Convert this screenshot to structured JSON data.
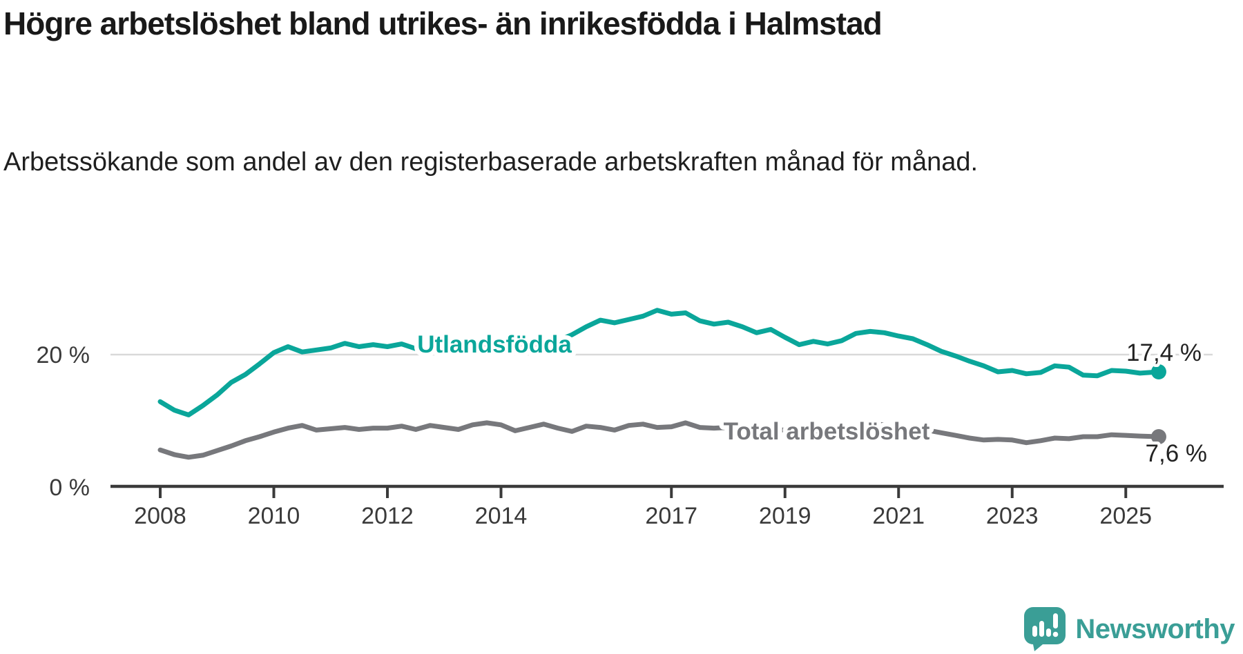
{
  "header": {
    "title": "Högre arbetslöshet bland utrikes- än inrikesfödda i Halmstad",
    "subtitle": "Arbetssökande som andel av den registerbaserade arbetskraften månad för månad."
  },
  "logo": {
    "text": "Newsworthy",
    "icon": "newsworthy-speech-bubble-chart-icon",
    "color": "#3a9e96"
  },
  "colors": {
    "accent_teal": "#0aa69a",
    "line_gray": "#77787c",
    "axis": "#3a3a3a",
    "gridline": "#d9d9d9",
    "value_label": "#222222",
    "title_text": "#191919"
  },
  "chart_data": {
    "type": "line",
    "title": "Högre arbetslöshet bland utrikes- än inrikesfödda i Halmstad",
    "subtitle": "Arbetssökande som andel av den registerbaserade arbetskraften månad för månad.",
    "unit": "%",
    "xlim": [
      2007.1,
      2026.7
    ],
    "ylim": [
      0,
      34
    ],
    "grid": "horizontal-only",
    "grid_values": [
      20
    ],
    "x_ticks": [
      {
        "value": 2008,
        "label": "2008"
      },
      {
        "value": 2010,
        "label": "2010"
      },
      {
        "value": 2012,
        "label": "2012"
      },
      {
        "value": 2014,
        "label": "2014"
      },
      {
        "value": 2017,
        "label": "2017"
      },
      {
        "value": 2019,
        "label": "2019"
      },
      {
        "value": 2021,
        "label": "2021"
      },
      {
        "value": 2023,
        "label": "2023"
      },
      {
        "value": 2025,
        "label": "2025"
      }
    ],
    "y_ticks": [
      {
        "value": 0,
        "label": "0 %"
      },
      {
        "value": 20,
        "label": "20 %"
      }
    ],
    "x": [
      2008.0,
      2008.25,
      2008.5,
      2008.75,
      2009.0,
      2009.25,
      2009.5,
      2009.75,
      2010.0,
      2010.25,
      2010.5,
      2010.75,
      2011.0,
      2011.25,
      2011.5,
      2011.75,
      2012.0,
      2012.25,
      2012.5,
      2012.75,
      2013.0,
      2013.25,
      2013.5,
      2013.75,
      2014.0,
      2014.25,
      2014.5,
      2014.75,
      2015.0,
      2015.25,
      2015.5,
      2015.75,
      2016.0,
      2016.25,
      2016.5,
      2016.75,
      2017.0,
      2017.25,
      2017.5,
      2017.75,
      2018.0,
      2018.25,
      2018.5,
      2018.75,
      2019.0,
      2019.25,
      2019.5,
      2019.75,
      2020.0,
      2020.25,
      2020.5,
      2020.75,
      2021.0,
      2021.25,
      2021.5,
      2021.75,
      2022.0,
      2022.25,
      2022.5,
      2022.75,
      2023.0,
      2023.25,
      2023.5,
      2023.75,
      2024.0,
      2024.25,
      2024.5,
      2024.75,
      2025.0,
      2025.25,
      2025.58
    ],
    "series": [
      {
        "name": "Utlandsfödda",
        "color": "#0aa69a",
        "end_label": "17,4 %",
        "end_value": 17.4,
        "values": [
          12.9,
          11.6,
          10.9,
          12.3,
          13.9,
          15.8,
          17.0,
          18.6,
          20.3,
          21.2,
          20.4,
          20.7,
          21.0,
          21.7,
          21.2,
          21.5,
          21.2,
          21.6,
          20.9,
          21.2,
          20.9,
          21.4,
          22.0,
          21.5,
          21.3,
          21.8,
          21.4,
          21.7,
          22.1,
          23.0,
          24.2,
          25.2,
          24.8,
          25.3,
          25.8,
          26.7,
          26.1,
          26.3,
          25.1,
          24.6,
          24.9,
          24.2,
          23.3,
          23.8,
          22.6,
          21.5,
          22.0,
          21.6,
          22.1,
          23.2,
          23.5,
          23.3,
          22.8,
          22.4,
          21.5,
          20.5,
          19.8,
          19.0,
          18.3,
          17.4,
          17.6,
          17.1,
          17.3,
          18.3,
          18.1,
          16.9,
          16.8,
          17.6,
          17.5,
          17.2,
          17.4
        ]
      },
      {
        "name": "Total arbetslöshet",
        "color": "#77787c",
        "end_label": "7,6 %",
        "end_value": 7.6,
        "values": [
          5.6,
          4.9,
          4.5,
          4.8,
          5.5,
          6.2,
          7.0,
          7.6,
          8.3,
          8.9,
          9.3,
          8.6,
          8.8,
          9.0,
          8.7,
          8.9,
          8.9,
          9.2,
          8.7,
          9.3,
          9.0,
          8.7,
          9.4,
          9.7,
          9.4,
          8.5,
          9.0,
          9.5,
          8.9,
          8.4,
          9.2,
          9.0,
          8.6,
          9.3,
          9.5,
          9.0,
          9.1,
          9.7,
          9.0,
          8.9,
          9.0,
          8.8,
          8.6,
          8.7,
          8.6,
          8.4,
          8.5,
          8.4,
          8.6,
          9.3,
          9.6,
          9.4,
          9.2,
          9.0,
          8.6,
          8.2,
          7.8,
          7.4,
          7.1,
          7.2,
          7.1,
          6.7,
          7.0,
          7.4,
          7.3,
          7.6,
          7.6,
          7.9,
          7.8,
          7.7,
          7.6
        ]
      }
    ]
  }
}
